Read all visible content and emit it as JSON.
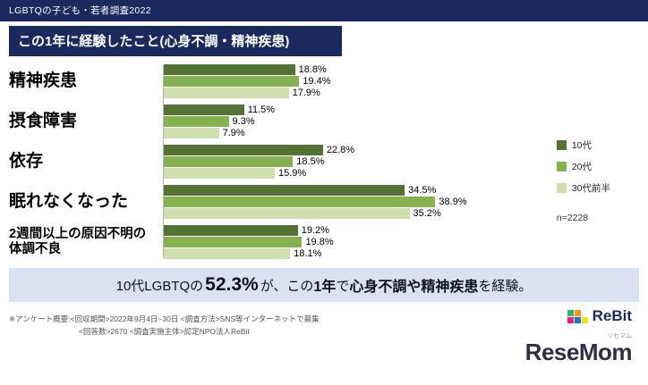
{
  "header": {
    "top_bar": "LGBTQの子ども・若者調査2022",
    "title": "この1年に経験したこと(心身不調・精神疾患)"
  },
  "chart_data": {
    "type": "bar",
    "orientation": "horizontal",
    "title": "この1年に経験したこと(心身不調・精神疾患)",
    "xlabel": "",
    "ylabel": "",
    "xlim": [
      0,
      40
    ],
    "grid": false,
    "legend_position": "right",
    "value_label_suffix": "%",
    "categories": [
      "精神疾患",
      "摂食障害",
      "依存",
      "眠れなくなった",
      "2週間以上の原因不明の体調不良"
    ],
    "series": [
      {
        "name": "10代",
        "color": "#547233",
        "values": [
          18.8,
          11.5,
          22.8,
          34.5,
          19.2
        ]
      },
      {
        "name": "20代",
        "color": "#85b24e",
        "values": [
          19.4,
          9.3,
          18.5,
          38.9,
          19.8
        ]
      },
      {
        "name": "30代前半",
        "color": "#cfe0ae",
        "values": [
          17.9,
          7.9,
          15.9,
          35.2,
          18.1
        ]
      }
    ],
    "note": "n=2228"
  },
  "legend": {
    "n_label": "n=2228"
  },
  "callout": {
    "prefix": "10代LGBTQの",
    "big": "52.3%",
    "mid1": "が、この",
    "year": "1年",
    "mid2": "で",
    "strong": "心身不調や精神疾患",
    "suffix": "を経験。"
  },
  "footer": {
    "line1": "※アンケート概要:<回収期間>2022年9月4日~30日 <調査方法>SNS等インターネットで募集",
    "line2": "<回答数>2670 <調査実施主体>認定NPO法人ReBit"
  },
  "logos": {
    "rebit_text": "ReBit",
    "rebit_mark_colors": [
      "#29b473",
      "#f7941d",
      "#ffffff",
      "#ed1e79",
      "#1b75bb",
      "#f4e40e"
    ],
    "resemom_text": "ReseMom",
    "resemom_kana": "リセマム"
  }
}
